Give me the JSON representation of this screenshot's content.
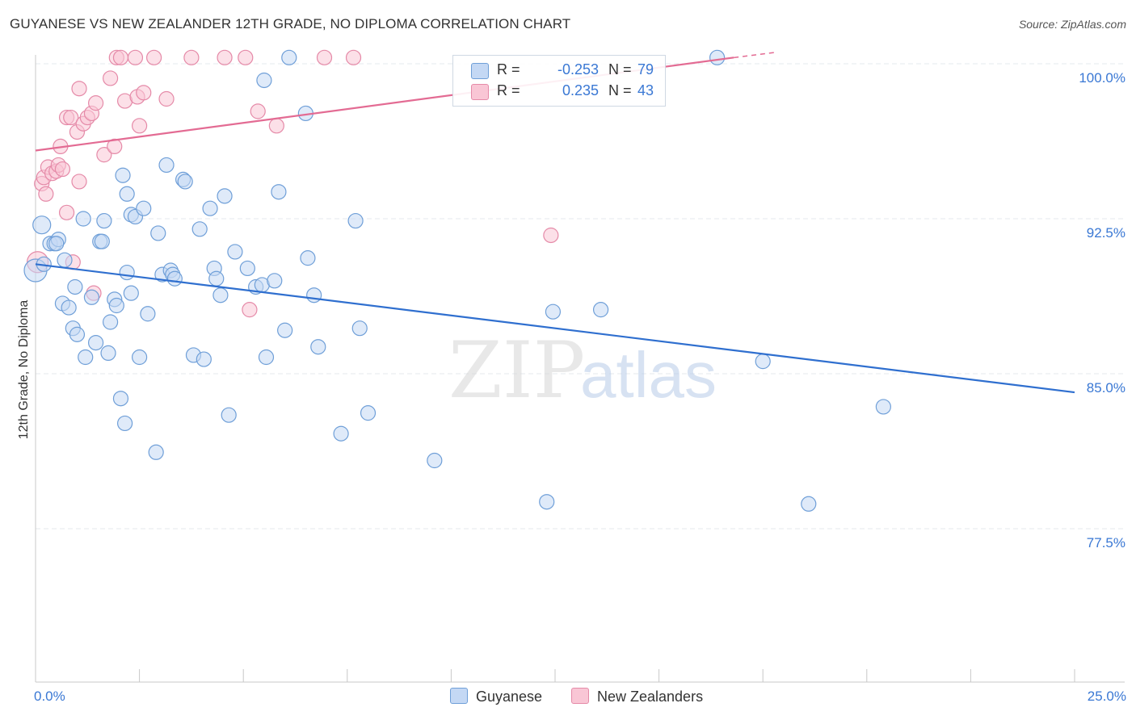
{
  "title": "GUYANESE VS NEW ZEALANDER 12TH GRADE, NO DIPLOMA CORRELATION CHART",
  "source": "Source: ZipAtlas.com",
  "watermark": {
    "zip": "ZIP",
    "atlas": "atlas"
  },
  "colors": {
    "blue_fill": "#c4d8f4",
    "blue_stroke": "#6f9fd8",
    "blue_line": "#2f6fcf",
    "pink_fill": "#f9c6d5",
    "pink_stroke": "#e58aa8",
    "pink_line": "#e36b93",
    "axis_text": "#3a78d4",
    "grid": "#e4e8ee"
  },
  "legend": {
    "rows": [
      {
        "r_label": "R =",
        "r_value": "-0.253",
        "n_label": "N =",
        "n_value": "79",
        "color": "#c4d8f4",
        "border": "#6f9fd8"
      },
      {
        "r_label": "R =",
        "r_value": "0.235",
        "n_label": "N =",
        "n_value": "43",
        "color": "#f9c6d5",
        "border": "#e58aa8"
      }
    ]
  },
  "bottom_legend": [
    {
      "label": "Guyanese",
      "color": "#c4d8f4",
      "border": "#6f9fd8"
    },
    {
      "label": "New Zealanders",
      "color": "#f9c6d5",
      "border": "#e58aa8"
    }
  ],
  "chart_data": {
    "type": "scatter",
    "title": "GUYANESE VS NEW ZEALANDER 12TH GRADE, NO DIPLOMA CORRELATION CHART",
    "xlabel": "",
    "ylabel": "12th Grade, No Diploma",
    "xlim": [
      0,
      25
    ],
    "ylim": [
      70,
      101.5
    ],
    "x_tick_labels": [
      "0.0%",
      "25.0%"
    ],
    "y_ticks": [
      77.5,
      85.0,
      92.5,
      100.0
    ],
    "y_tick_labels": [
      "77.5%",
      "85.0%",
      "92.5%",
      "100.0%"
    ],
    "grid": true,
    "legend_position": "top-center",
    "series": [
      {
        "name": "Guyanese",
        "r": -0.253,
        "n": 79,
        "trend": {
          "x": [
            0,
            25
          ],
          "y": [
            90.3,
            84.1
          ]
        },
        "points": [
          [
            0.0,
            90.0
          ],
          [
            0.15,
            92.2
          ],
          [
            0.2,
            90.3
          ],
          [
            0.35,
            91.3
          ],
          [
            0.45,
            91.3
          ],
          [
            0.55,
            91.5
          ],
          [
            0.65,
            88.4
          ],
          [
            0.7,
            90.5
          ],
          [
            0.8,
            88.2
          ],
          [
            0.9,
            87.2
          ],
          [
            0.95,
            89.2
          ],
          [
            1.0,
            86.9
          ],
          [
            1.15,
            92.5
          ],
          [
            1.2,
            85.8
          ],
          [
            1.35,
            88.7
          ],
          [
            1.45,
            86.5
          ],
          [
            1.55,
            91.4
          ],
          [
            1.6,
            91.4
          ],
          [
            1.65,
            92.4
          ],
          [
            1.75,
            86.0
          ],
          [
            1.8,
            87.5
          ],
          [
            1.9,
            88.6
          ],
          [
            1.95,
            88.3
          ],
          [
            2.05,
            83.8
          ],
          [
            2.1,
            94.6
          ],
          [
            2.15,
            82.6
          ],
          [
            2.2,
            89.9
          ],
          [
            2.2,
            93.7
          ],
          [
            2.3,
            88.9
          ],
          [
            2.3,
            92.7
          ],
          [
            2.4,
            92.6
          ],
          [
            2.5,
            85.8
          ],
          [
            2.6,
            93.0
          ],
          [
            2.7,
            87.9
          ],
          [
            2.9,
            81.2
          ],
          [
            2.95,
            91.8
          ],
          [
            3.05,
            89.8
          ],
          [
            3.15,
            95.1
          ],
          [
            3.25,
            90.0
          ],
          [
            3.3,
            89.8
          ],
          [
            3.35,
            89.6
          ],
          [
            3.55,
            94.4
          ],
          [
            3.6,
            94.3
          ],
          [
            3.8,
            85.9
          ],
          [
            3.95,
            92.0
          ],
          [
            4.05,
            85.7
          ],
          [
            4.2,
            93.0
          ],
          [
            4.3,
            90.1
          ],
          [
            4.35,
            89.6
          ],
          [
            4.45,
            88.8
          ],
          [
            4.55,
            93.6
          ],
          [
            4.65,
            83.0
          ],
          [
            4.8,
            90.9
          ],
          [
            5.1,
            90.1
          ],
          [
            5.3,
            89.2
          ],
          [
            5.45,
            89.3
          ],
          [
            5.5,
            99.2
          ],
          [
            5.55,
            85.8
          ],
          [
            5.75,
            89.5
          ],
          [
            5.85,
            93.8
          ],
          [
            6.0,
            87.1
          ],
          [
            6.1,
            100.3
          ],
          [
            6.5,
            97.6
          ],
          [
            6.55,
            90.6
          ],
          [
            6.7,
            88.8
          ],
          [
            6.8,
            86.3
          ],
          [
            7.35,
            82.1
          ],
          [
            7.7,
            92.4
          ],
          [
            7.8,
            87.2
          ],
          [
            8.0,
            83.1
          ],
          [
            9.6,
            80.8
          ],
          [
            12.3,
            78.8
          ],
          [
            12.45,
            88.0
          ],
          [
            13.6,
            88.1
          ],
          [
            16.4,
            100.3
          ],
          [
            17.5,
            85.6
          ],
          [
            18.6,
            78.7
          ],
          [
            20.4,
            83.4
          ],
          [
            0.5,
            91.3
          ]
        ]
      },
      {
        "name": "New Zealanders",
        "r": 0.235,
        "n": 43,
        "trend": {
          "x": [
            0,
            16.8
          ],
          "y": [
            95.8,
            100.3
          ]
        },
        "trend_dashed": {
          "x": [
            16.8,
            17.8
          ],
          "y": [
            100.3,
            100.55
          ]
        },
        "points": [
          [
            0.05,
            90.4
          ],
          [
            0.15,
            94.2
          ],
          [
            0.2,
            94.5
          ],
          [
            0.25,
            93.7
          ],
          [
            0.3,
            95.0
          ],
          [
            0.4,
            94.7
          ],
          [
            0.5,
            94.8
          ],
          [
            0.55,
            95.1
          ],
          [
            0.6,
            96.0
          ],
          [
            0.65,
            94.9
          ],
          [
            0.75,
            92.8
          ],
          [
            0.75,
            97.4
          ],
          [
            0.85,
            97.4
          ],
          [
            0.9,
            90.4
          ],
          [
            1.0,
            96.7
          ],
          [
            1.05,
            94.3
          ],
          [
            1.05,
            98.8
          ],
          [
            1.15,
            97.1
          ],
          [
            1.25,
            97.4
          ],
          [
            1.35,
            97.6
          ],
          [
            1.4,
            88.9
          ],
          [
            1.45,
            98.1
          ],
          [
            1.65,
            95.6
          ],
          [
            1.8,
            99.3
          ],
          [
            1.9,
            96.0
          ],
          [
            1.95,
            100.3
          ],
          [
            2.05,
            100.3
          ],
          [
            2.15,
            98.2
          ],
          [
            2.4,
            100.3
          ],
          [
            2.45,
            98.4
          ],
          [
            2.5,
            97.0
          ],
          [
            2.6,
            98.6
          ],
          [
            2.85,
            100.3
          ],
          [
            3.15,
            98.3
          ],
          [
            3.75,
            100.3
          ],
          [
            4.55,
            100.3
          ],
          [
            5.05,
            100.3
          ],
          [
            5.15,
            88.1
          ],
          [
            5.35,
            97.7
          ],
          [
            5.8,
            97.0
          ],
          [
            6.95,
            100.3
          ],
          [
            7.65,
            100.3
          ],
          [
            12.4,
            91.7
          ]
        ]
      }
    ]
  }
}
